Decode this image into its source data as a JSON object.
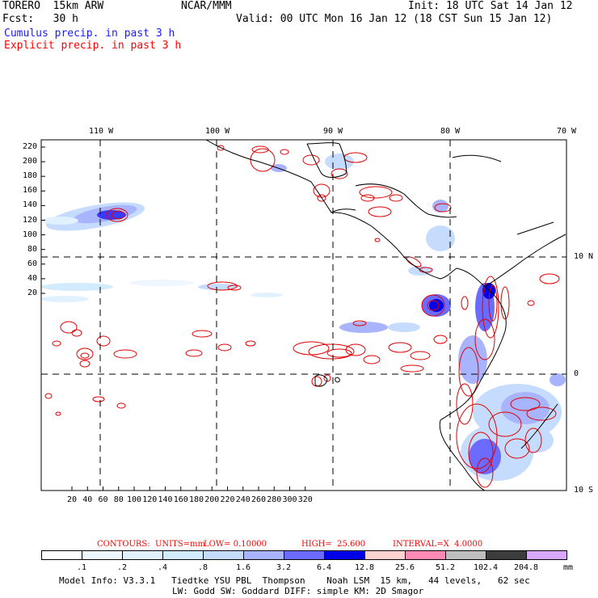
{
  "header": {
    "model": "TORERO  15km ARW",
    "org": "NCAR/MMM",
    "init": "Init: 18 UTC Sat 14 Jan 12",
    "fcst": "Fcst:   30 h",
    "valid": "Valid: 00 UTC Mon 16 Jan 12 (18 CST Sun 15 Jan 12)",
    "cumulus": "Cumulus precip. in past 3 h",
    "explicit": "Explicit precip. in past 3 h"
  },
  "axes": {
    "top_lon": [
      "110 W",
      "100 W",
      "90 W",
      "80 W",
      "70 W"
    ],
    "right_lat": [
      "10 N",
      "0",
      "10 S"
    ],
    "y_ticks": [
      "220",
      "200",
      "180",
      "160",
      "140",
      "120",
      "100",
      "80",
      "60",
      "40",
      "20"
    ],
    "x_ticks": [
      "20",
      "40",
      "60",
      "80",
      "100",
      "120",
      "140",
      "160",
      "180",
      "200",
      "220",
      "240",
      "260",
      "280",
      "300",
      "320"
    ]
  },
  "contour_info": {
    "label": "CONTOURS:",
    "units": "UNITS=mm",
    "low": "LOW= 0.10000",
    "high": "HIGH=  25.600",
    "interval": "INTERVAL=X  4.0000"
  },
  "colorbar": {
    "labels": [
      ".1",
      ".2",
      ".4",
      ".8",
      "1.6",
      "3.2",
      "6.4",
      "12.8",
      "25.6",
      "51.2",
      "102.4",
      "204.8"
    ],
    "unit": "mm",
    "colors": [
      "#ffffff",
      "#eef6ff",
      "#e2f1ff",
      "#d3ebff",
      "#c6dcff",
      "#a9b4ff",
      "#6b6bff",
      "#0000e8",
      "#ffd2d2",
      "#ff8ab4",
      "#bebebe",
      "#3c3c3c",
      "#d8a8ff"
    ]
  },
  "footer": {
    "line1": "Model Info: V3.3.1   Tiedtke YSU PBL  Thompson    Noah LSM  15 km,   44 levels,   62 sec",
    "line2": "LW: Godd SW: Goddard DIFF: simple KM: 2D Smagor"
  }
}
